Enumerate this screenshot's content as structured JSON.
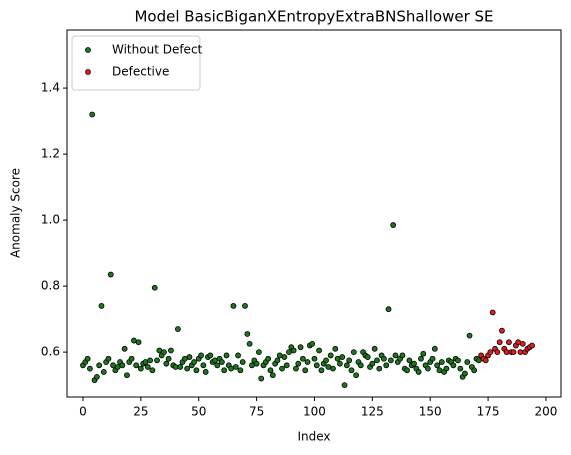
{
  "chart_data": {
    "type": "scatter",
    "title": "Model BasicBiganXEntropyExtraBNShallower SE",
    "x_label": "Index",
    "y_label": "Anomaly Score",
    "xlim": [
      -6.9,
      206.5
    ],
    "ylim": [
      0.464,
      1.576
    ],
    "xticks": [
      0,
      25,
      50,
      75,
      100,
      125,
      150,
      175,
      200
    ],
    "yticks": [
      0.6,
      0.8,
      {
        "value": 1.0,
        "label": "1.0"
      },
      1.2,
      1.4
    ],
    "grid": false,
    "legend": "upper left",
    "series": [
      {
        "name": "Without Defect",
        "color": "#1a7a1a",
        "x": [
          0,
          1,
          2,
          3,
          4,
          5,
          6,
          7,
          8,
          9,
          10,
          11,
          12,
          13,
          14,
          15,
          16,
          17,
          18,
          19,
          20,
          21,
          22,
          23,
          24,
          25,
          26,
          27,
          28,
          29,
          30,
          31,
          32,
          33,
          34,
          35,
          36,
          37,
          38,
          39,
          40,
          41,
          42,
          43,
          44,
          45,
          46,
          47,
          48,
          49,
          50,
          51,
          52,
          53,
          54,
          55,
          56,
          57,
          58,
          59,
          60,
          61,
          62,
          63,
          64,
          65,
          66,
          67,
          68,
          69,
          70,
          71,
          72,
          73,
          74,
          75,
          76,
          77,
          78,
          79,
          80,
          81,
          82,
          83,
          84,
          85,
          86,
          87,
          88,
          89,
          90,
          91,
          92,
          93,
          94,
          95,
          96,
          97,
          98,
          99,
          100,
          101,
          102,
          103,
          104,
          105,
          106,
          107,
          108,
          109,
          110,
          111,
          112,
          113,
          114,
          115,
          116,
          117,
          118,
          119,
          120,
          121,
          122,
          123,
          124,
          125,
          126,
          127,
          128,
          129,
          130,
          131,
          132,
          133,
          134,
          135,
          136,
          137,
          138,
          139,
          140,
          141,
          142,
          143,
          144,
          145,
          146,
          147,
          148,
          149,
          150,
          151,
          152,
          153,
          154,
          155,
          156,
          157,
          158,
          159,
          160,
          161,
          162,
          163,
          164,
          165,
          166,
          167,
          168,
          169,
          170,
          171
        ],
        "values": [
          0.56,
          0.57,
          0.58,
          0.55,
          1.32,
          0.515,
          0.525,
          0.56,
          0.74,
          0.54,
          0.57,
          0.58,
          0.835,
          0.56,
          0.545,
          0.555,
          0.57,
          0.56,
          0.61,
          0.53,
          0.57,
          0.58,
          0.635,
          0.56,
          0.63,
          0.55,
          0.565,
          0.57,
          0.555,
          0.575,
          0.545,
          0.795,
          0.575,
          0.605,
          0.59,
          0.6,
          0.565,
          0.58,
          0.605,
          0.56,
          0.555,
          0.67,
          0.555,
          0.57,
          0.58,
          0.55,
          0.585,
          0.56,
          0.57,
          0.545,
          0.58,
          0.59,
          0.56,
          0.54,
          0.585,
          0.59,
          0.57,
          0.575,
          0.56,
          0.58,
          0.57,
          0.545,
          0.59,
          0.56,
          0.55,
          0.74,
          0.555,
          0.59,
          0.545,
          0.57,
          0.74,
          0.655,
          0.625,
          0.56,
          0.575,
          0.565,
          0.6,
          0.52,
          0.56,
          0.57,
          0.58,
          0.545,
          0.53,
          0.565,
          0.575,
          0.59,
          0.55,
          0.585,
          0.56,
          0.6,
          0.615,
          0.605,
          0.55,
          0.565,
          0.615,
          0.58,
          0.545,
          0.57,
          0.62,
          0.625,
          0.58,
          0.56,
          0.605,
          0.545,
          0.565,
          0.575,
          0.555,
          0.59,
          0.55,
          0.61,
          0.58,
          0.565,
          0.585,
          0.5,
          0.56,
          0.575,
          0.545,
          0.6,
          0.53,
          0.57,
          0.56,
          0.6,
          0.59,
          0.585,
          0.555,
          0.565,
          0.61,
          0.575,
          0.55,
          0.59,
          0.58,
          0.56,
          0.73,
          0.575,
          0.985,
          0.59,
          0.57,
          0.58,
          0.59,
          0.55,
          0.545,
          0.575,
          0.56,
          0.565,
          0.55,
          0.54,
          0.58,
          0.595,
          0.56,
          0.55,
          0.57,
          0.58,
          0.61,
          0.56,
          0.545,
          0.57,
          0.54,
          0.55,
          0.575,
          0.57,
          0.56,
          0.58,
          0.575,
          0.55,
          0.525,
          0.535,
          0.57,
          0.65,
          0.555,
          0.545,
          0.58,
          0.575
        ]
      },
      {
        "name": "Defective",
        "color": "#e41a1c",
        "x": [
          172,
          173,
          174,
          175,
          176,
          177,
          178,
          179,
          180,
          181,
          182,
          183,
          184,
          185,
          186,
          187,
          188,
          189,
          190,
          191,
          192,
          193,
          194
        ],
        "values": [
          0.59,
          0.58,
          0.575,
          0.59,
          0.6,
          0.72,
          0.61,
          0.6,
          0.63,
          0.665,
          0.61,
          0.6,
          0.63,
          0.6,
          0.6,
          0.62,
          0.63,
          0.6,
          0.625,
          0.6,
          0.61,
          0.615,
          0.62
        ]
      }
    ]
  }
}
